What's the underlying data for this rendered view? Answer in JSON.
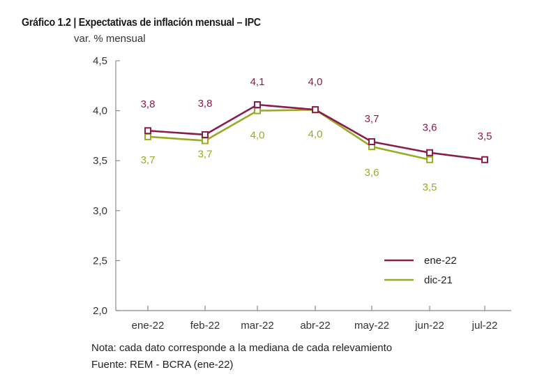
{
  "header": {
    "title": "Gráfico 1.2 | Expectativas de inflación mensual – IPC",
    "unit": "var. % mensual"
  },
  "footer": {
    "note": "Nota: cada dato corresponde a la mediana de cada relevamiento",
    "source": "Fuente: REM - BCRA (ene-22)"
  },
  "chart_data": {
    "type": "line",
    "title": "Gráfico 1.2 | Expectativas de inflación mensual – IPC",
    "ylabel": "var. % mensual",
    "xlabel": "",
    "categories": [
      "ene-22",
      "feb-22",
      "mar-22",
      "abr-22",
      "may-22",
      "jun-22",
      "jul-22"
    ],
    "ylim": [
      2.0,
      4.5
    ],
    "yticks": [
      2.0,
      2.5,
      3.0,
      3.5,
      4.0,
      4.5
    ],
    "ytick_labels": [
      "2,0",
      "2,5",
      "3,0",
      "3,5",
      "4,0",
      "4,5"
    ],
    "grid": false,
    "legend_position": "bottom-right",
    "series": [
      {
        "name": "ene-22",
        "color": "#8a1c4c",
        "values": [
          3.8,
          3.76,
          4.06,
          4.01,
          3.69,
          3.58,
          3.51
        ],
        "labels": [
          "3,8",
          "3,8",
          "4,1",
          "4,0",
          "3,7",
          "3,6",
          "3,5"
        ],
        "label_position": "above"
      },
      {
        "name": "dic-21",
        "color": "#9aaa22",
        "values": [
          3.74,
          3.7,
          4.0,
          4.01,
          3.64,
          3.51,
          null
        ],
        "labels": [
          "3,7",
          "3,7",
          "4,0",
          "4,0",
          "3,6",
          "3,5",
          null
        ],
        "label_position": "below"
      }
    ]
  }
}
